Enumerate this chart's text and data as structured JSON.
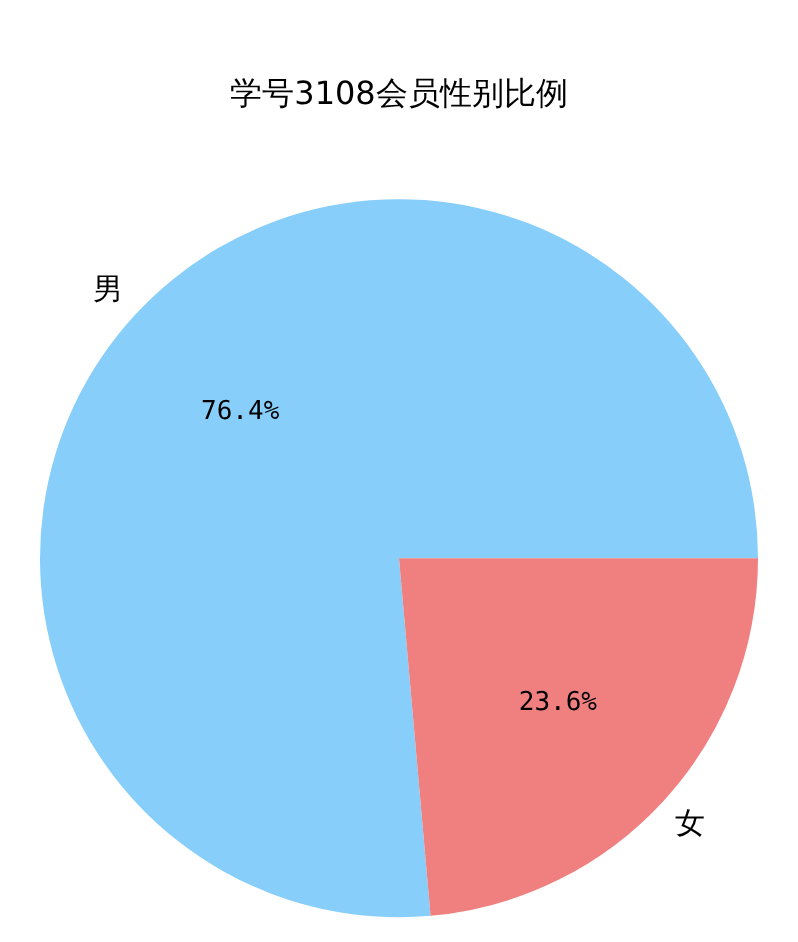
{
  "chart_data": {
    "type": "pie",
    "title": "学号3108会员性别比例",
    "categories": [
      "男",
      "女"
    ],
    "values": [
      76.4,
      23.6
    ],
    "colors": [
      "#87cefa",
      "#f08080"
    ],
    "value_labels": [
      "76.4%",
      "23.6%"
    ],
    "legend": false
  }
}
